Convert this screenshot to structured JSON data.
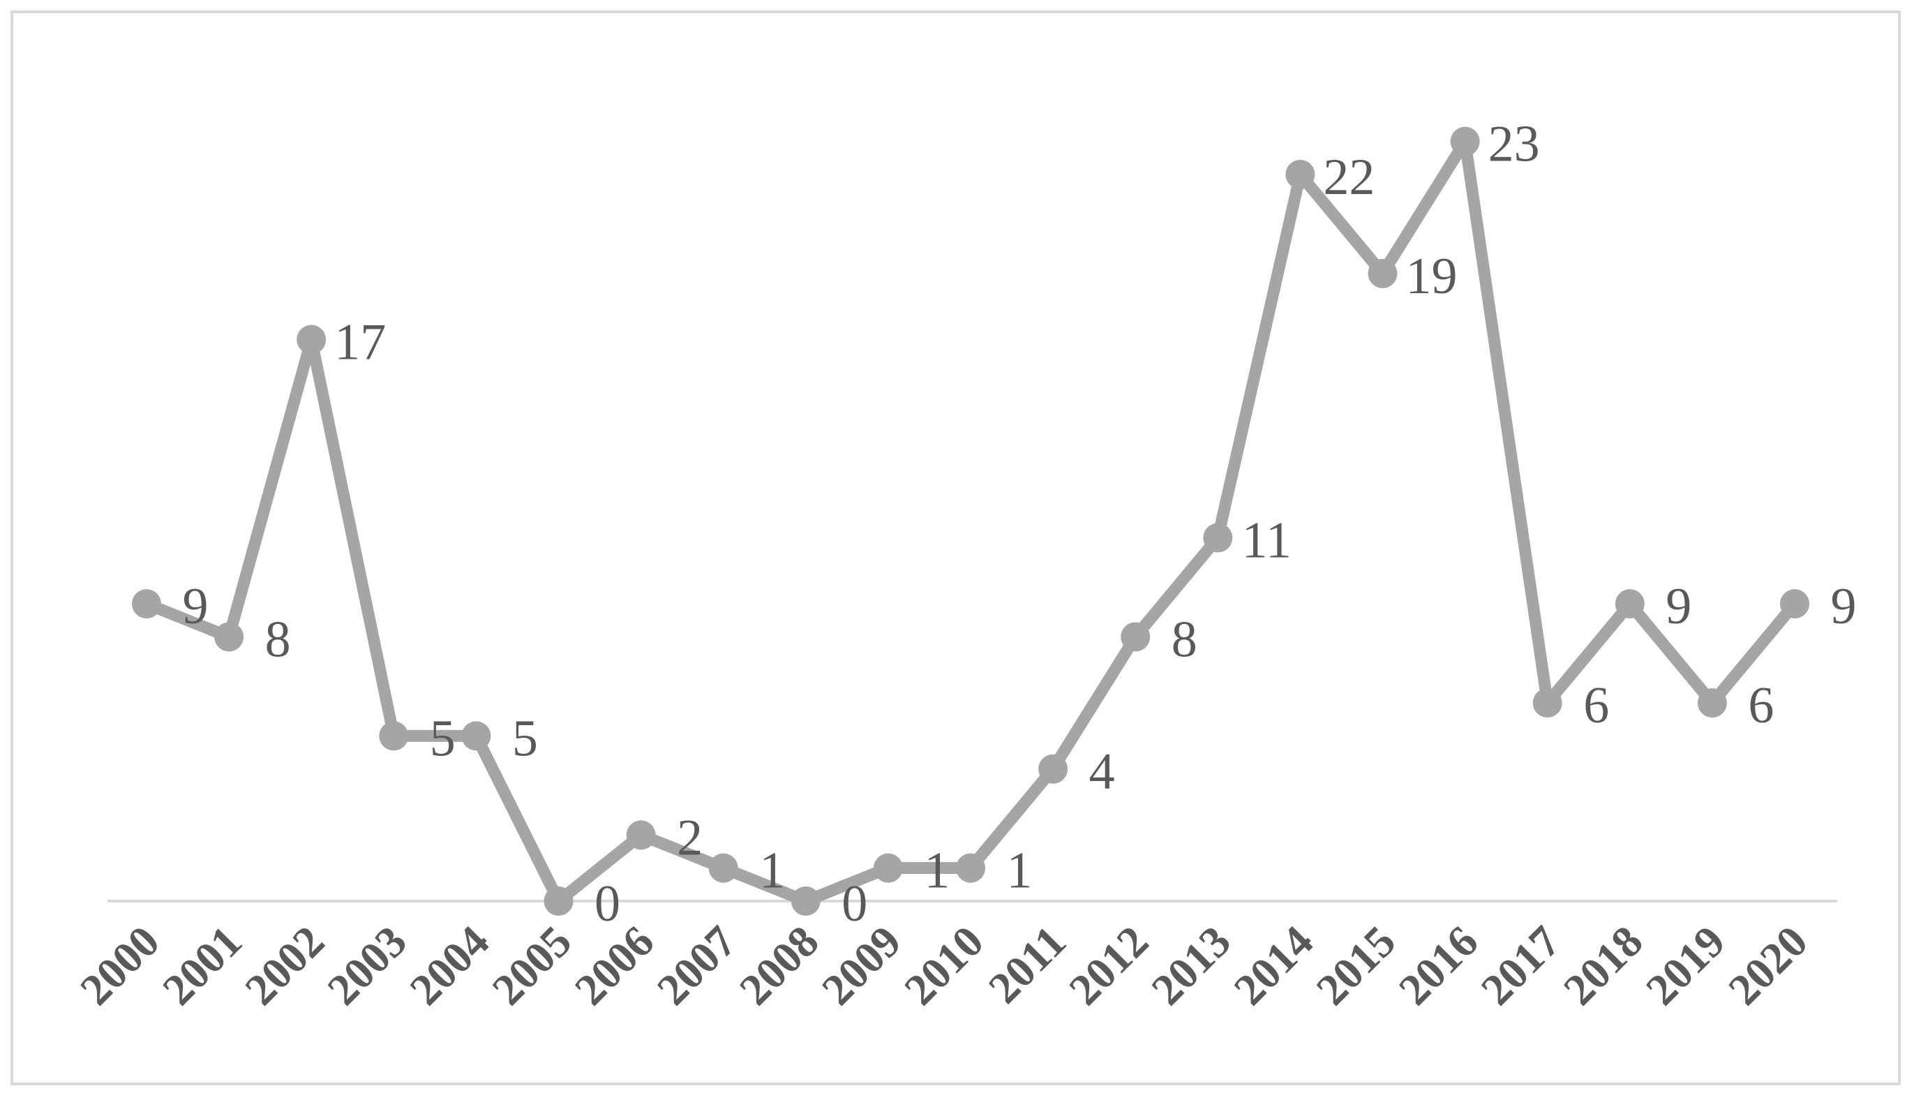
{
  "chart_data": {
    "type": "line",
    "categories": [
      "2000",
      "2001",
      "2002",
      "2003",
      "2004",
      "2005",
      "2006",
      "2007",
      "2008",
      "2009",
      "2010",
      "2011",
      "2012",
      "2013",
      "2014",
      "2015",
      "2016",
      "2017",
      "2018",
      "2019",
      "2020"
    ],
    "values": [
      9,
      8,
      17,
      5,
      5,
      0,
      2,
      1,
      0,
      1,
      1,
      4,
      8,
      11,
      22,
      19,
      23,
      6,
      9,
      6,
      9
    ],
    "color": "#a5a5a5",
    "ylim": [
      0,
      25
    ]
  }
}
